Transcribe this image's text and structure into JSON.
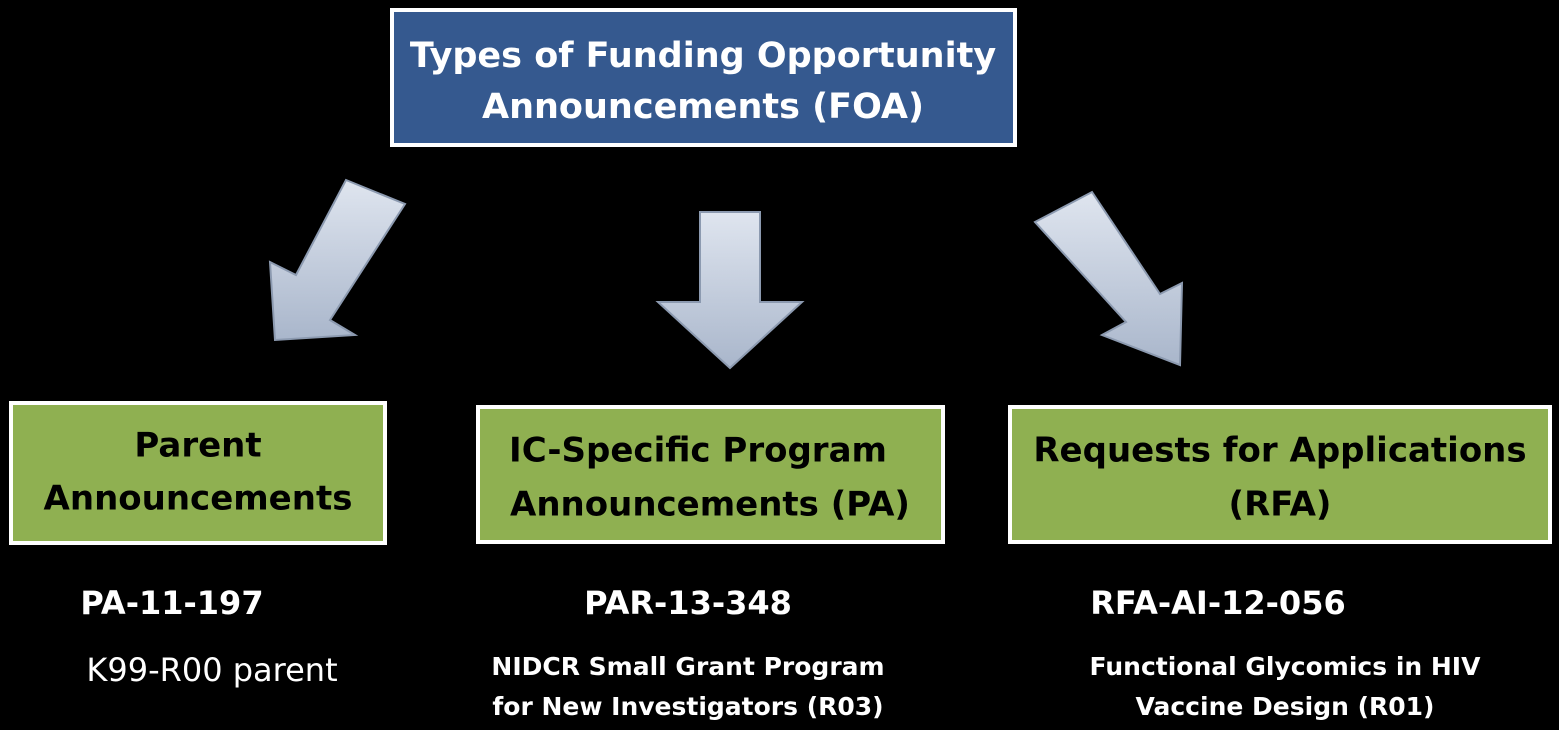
{
  "header": {
    "title_line1": "Types of Funding Opportunity",
    "title_line2": "Announcements (FOA)"
  },
  "nodes": [
    {
      "label_line1": "Parent",
      "label_line2": "Announcements",
      "code": "PA-11-197",
      "example_line1": "K99-R00 parent"
    },
    {
      "label_line1": "IC-Specific Program",
      "label_line2": "Announcements (PA)",
      "code": "PAR-13-348",
      "example_line1": "NIDCR Small Grant Program",
      "example_line2": "for New Investigators (R03)"
    },
    {
      "label_line1": "Requests for Applications",
      "label_line2": "(RFA)",
      "code": "RFA-AI-12-056",
      "example_line1": "Functional Glycomics in HIV",
      "example_line2": "Vaccine Design (R01)"
    }
  ]
}
